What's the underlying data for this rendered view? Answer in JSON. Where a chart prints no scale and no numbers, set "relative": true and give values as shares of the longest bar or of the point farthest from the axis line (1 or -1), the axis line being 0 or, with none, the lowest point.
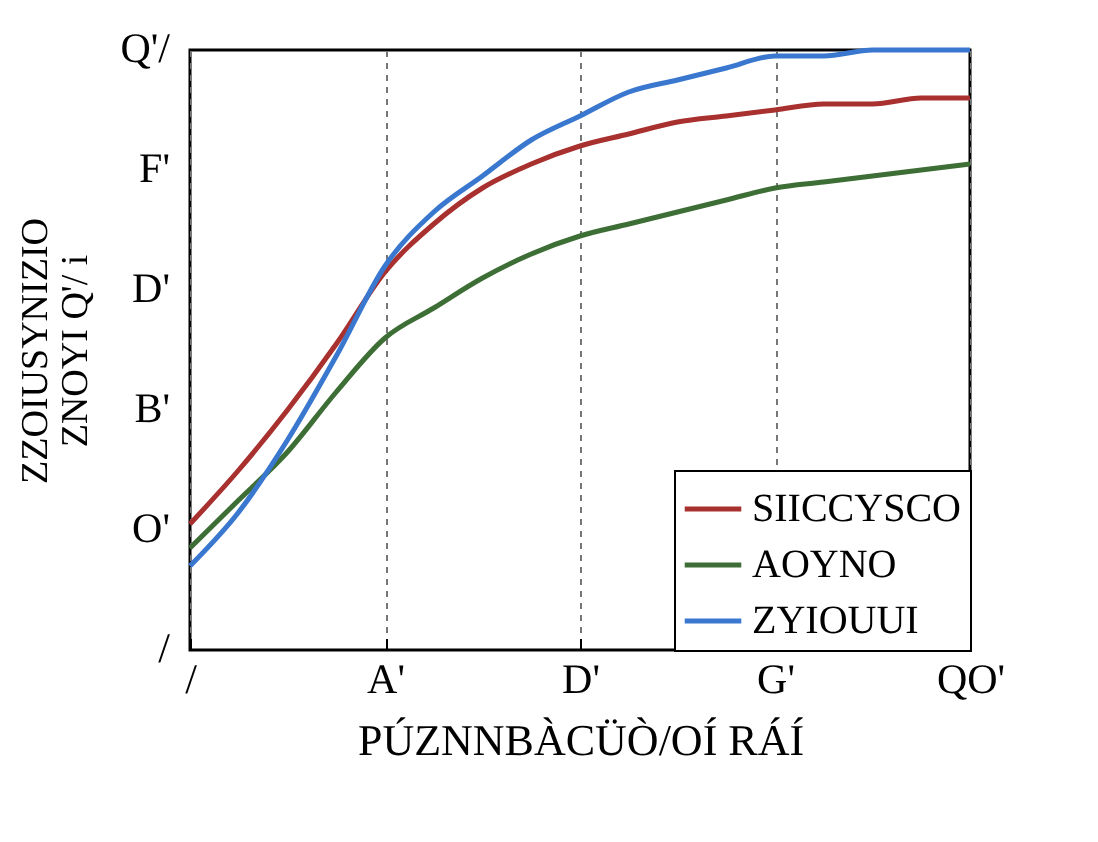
{
  "chart_data": {
    "type": "line",
    "relative": true,
    "xlabel": "PÚZNNBÀCÜÒ/OÍ RÁÍ",
    "ylabel": "ZZOIUSYNIZIO\nZNOYI Q'/ i",
    "categories": [
      "/",
      null,
      null,
      null,
      "A'",
      null,
      null,
      null,
      "D'",
      null,
      null,
      null,
      "G'",
      null,
      null,
      null,
      "QO'"
    ],
    "series": [
      {
        "name": "SIICCYSCO",
        "color": "#a8302e",
        "values": [
          0.21,
          0.3,
          0.4,
          0.51,
          0.63,
          0.71,
          0.77,
          0.81,
          0.84,
          0.86,
          0.88,
          0.89,
          0.9,
          0.91,
          0.91,
          0.92,
          0.92
        ]
      },
      {
        "name": "AOYNO",
        "color": "#3d6e35",
        "values": [
          0.17,
          0.25,
          0.33,
          0.43,
          0.52,
          0.57,
          0.62,
          0.66,
          0.69,
          0.71,
          0.73,
          0.75,
          0.77,
          0.78,
          0.79,
          0.8,
          0.81
        ]
      },
      {
        "name": "ZYIOUUI",
        "color": "#3a78d0",
        "values": [
          0.14,
          0.23,
          0.35,
          0.49,
          0.64,
          0.73,
          0.79,
          0.85,
          0.89,
          0.93,
          0.95,
          0.97,
          0.99,
          0.99,
          1,
          1,
          1
        ]
      }
    ],
    "annotations": [
      "Q'/",
      "F'",
      "D'",
      "B'",
      "O'",
      "/"
    ],
    "grid": "x",
    "legend": "bottom right",
    "marker": "none",
    "line_style": "solid"
  }
}
